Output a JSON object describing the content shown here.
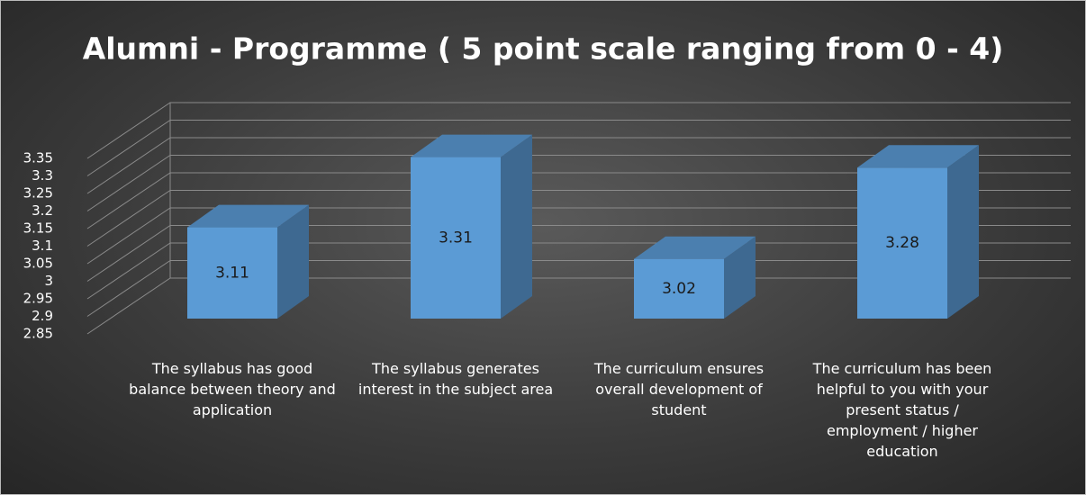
{
  "chart_data": {
    "type": "bar3d",
    "title": "Alumni - Programme ( 5 point scale ranging from 0 - 4)",
    "categories": [
      "The syllabus has good balance between theory and application",
      "The syllabus generates interest in the subject area",
      "The curriculum ensures overall development of student",
      "The curriculum has been helpful to you with your present status / employment / higher education"
    ],
    "values": [
      3.11,
      3.31,
      3.02,
      3.28
    ],
    "color": "#5b9bd5",
    "ylim": [
      2.85,
      3.35
    ],
    "yticks": [
      2.85,
      2.9,
      2.95,
      3,
      3.05,
      3.1,
      3.15,
      3.2,
      3.25,
      3.3,
      3.35
    ],
    "grid": true
  }
}
